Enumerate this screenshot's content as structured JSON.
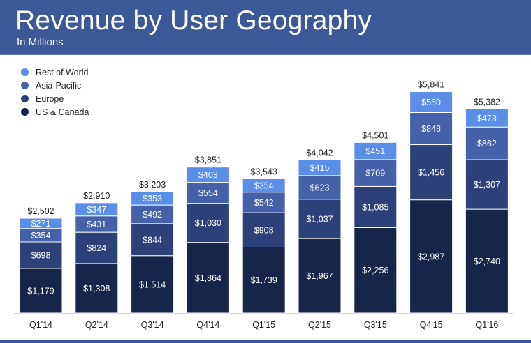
{
  "header": {
    "title": "Revenue by User Geography",
    "subtitle": "In Millions"
  },
  "colors": {
    "header_bg": "#3b5998",
    "rest_of_world": "#5b8ee6",
    "asia_pacific": "#4461aa",
    "europe": "#2b4178",
    "us_canada": "#17254a"
  },
  "chart_data": {
    "type": "bar",
    "stacked": true,
    "categories": [
      "Q1'14",
      "Q2'14",
      "Q3'14",
      "Q4'14",
      "Q1'15",
      "Q2'15",
      "Q3'15",
      "Q4'15",
      "Q1'16"
    ],
    "series": [
      {
        "name": "US & Canada",
        "values": [
          1179,
          1308,
          1514,
          1864,
          1739,
          1967,
          2256,
          2987,
          2740
        ],
        "labels": [
          "$1,179",
          "$1,308",
          "$1,514",
          "$1,864",
          "$1,739",
          "$1,967",
          "$2,256",
          "$2,987",
          "$2,740"
        ]
      },
      {
        "name": "Europe",
        "values": [
          698,
          824,
          844,
          1030,
          908,
          1037,
          1085,
          1456,
          1307
        ],
        "labels": [
          "$698",
          "$824",
          "$844",
          "$1,030",
          "$908",
          "$1,037",
          "$1,085",
          "$1,456",
          "$1,307"
        ]
      },
      {
        "name": "Asia-Pacific",
        "values": [
          354,
          431,
          492,
          554,
          542,
          623,
          709,
          848,
          862
        ],
        "labels": [
          "$354",
          "$431",
          "$492",
          "$554",
          "$542",
          "$623",
          "$709",
          "$848",
          "$862"
        ]
      },
      {
        "name": "Rest of World",
        "values": [
          271,
          347,
          353,
          403,
          354,
          415,
          451,
          550,
          473
        ],
        "labels": [
          "$271",
          "$347",
          "$353",
          "$403",
          "$354",
          "$415",
          "$451",
          "$550",
          "$473"
        ]
      }
    ],
    "totals": [
      2502,
      2910,
      3203,
      3851,
      3543,
      4042,
      4501,
      5841,
      5382
    ],
    "total_labels": [
      "$2,502",
      "$2,910",
      "$3,203",
      "$3,851",
      "$3,543",
      "$4,042",
      "$4,501",
      "$5,841",
      "$5,382"
    ],
    "title": "Revenue by User Geography",
    "subtitle": "In Millions",
    "legend": [
      "Rest of World",
      "Asia-Pacific",
      "Europe",
      "US & Canada"
    ],
    "legend_position": "top-left",
    "ylim": [
      0,
      6000
    ],
    "grid": false
  }
}
